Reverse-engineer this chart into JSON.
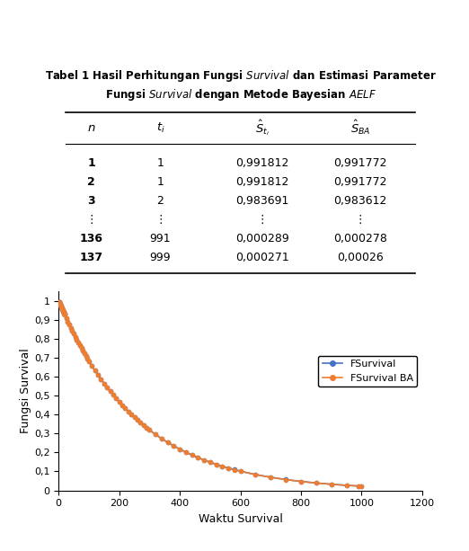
{
  "title_line1": "Tabel 1 Hasil Perhitungan Fungsi Survival dan Estimasi Parameter",
  "title_line2": "Fungsi Survival dengan Metode Bayesian AELF",
  "table_headers": [
    "n",
    "t_i",
    "S_ti",
    "S_BA"
  ],
  "table_rows": [
    [
      "1",
      "1",
      "0,991812",
      "0,991772"
    ],
    [
      "2",
      "1",
      "0,991812",
      "0,991772"
    ],
    [
      "3",
      "2",
      "0,983691",
      "0,983612"
    ],
    [
      "⋮",
      "⋮",
      "⋮",
      "⋮"
    ],
    [
      "136",
      "991",
      "0,000289",
      "0,000278"
    ],
    [
      "137",
      "999",
      "0,000271",
      "0,00026"
    ]
  ],
  "xlabel": "Waktu Survival",
  "ylabel": "Fungsi Survival",
  "yticks": [
    0,
    0.1,
    0.2,
    0.3,
    0.4,
    0.5,
    0.6,
    0.7,
    0.8,
    0.9,
    1
  ],
  "ytick_labels": [
    "0",
    "0,1",
    "0,2",
    "0,3",
    "0,4",
    "0,5",
    "0,6",
    "0,7",
    "0,8",
    "0,9",
    "1"
  ],
  "xticks": [
    0,
    200,
    400,
    600,
    800,
    1000,
    1200
  ],
  "xlim": [
    0,
    1200
  ],
  "ylim": [
    0,
    1.05
  ],
  "legend_labels": [
    "FSurvival",
    "FSurvival BA"
  ],
  "line1_color": "#4472C4",
  "line2_color": "#ED7D31",
  "lambda": 0.003812,
  "lambda_ba": 0.003816,
  "t_values": [
    1,
    1,
    2,
    3,
    4,
    5,
    6,
    7,
    8,
    9,
    10,
    11,
    12,
    13,
    14,
    15,
    16,
    17,
    18,
    19,
    20,
    25,
    30,
    35,
    40,
    45,
    50,
    55,
    60,
    65,
    70,
    75,
    80,
    85,
    90,
    95,
    100,
    110,
    120,
    130,
    140,
    150,
    160,
    170,
    180,
    190,
    200,
    210,
    220,
    230,
    240,
    250,
    260,
    270,
    280,
    290,
    300,
    320,
    340,
    360,
    380,
    400,
    420,
    440,
    460,
    480,
    500,
    520,
    540,
    560,
    580,
    600,
    650,
    700,
    750,
    800,
    850,
    900,
    950,
    991,
    999
  ]
}
